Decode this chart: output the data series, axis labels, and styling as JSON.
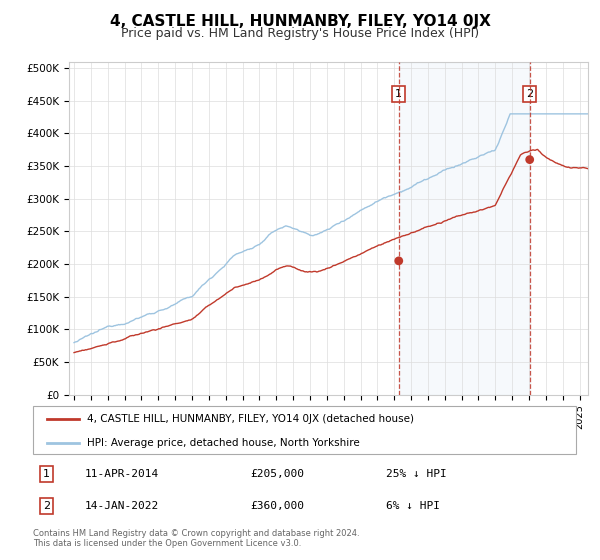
{
  "title": "4, CASTLE HILL, HUNMANBY, FILEY, YO14 0JX",
  "subtitle": "Price paid vs. HM Land Registry's House Price Index (HPI)",
  "title_fontsize": 11,
  "subtitle_fontsize": 9,
  "ylabel_ticks": [
    "£0",
    "£50K",
    "£100K",
    "£150K",
    "£200K",
    "£250K",
    "£300K",
    "£350K",
    "£400K",
    "£450K",
    "£500K"
  ],
  "ytick_values": [
    0,
    50000,
    100000,
    150000,
    200000,
    250000,
    300000,
    350000,
    400000,
    450000,
    500000
  ],
  "ylim": [
    0,
    510000
  ],
  "xlim_start": 1994.7,
  "xlim_end": 2025.5,
  "hpi_color": "#9ec4e0",
  "hpi_fill_color": "#ddeeff",
  "price_color": "#c0392b",
  "background_color": "#ffffff",
  "plot_bg_color": "#ffffff",
  "grid_color": "#dddddd",
  "sale1_x": 2014.27,
  "sale1_y": 205000,
  "sale1_label": "1",
  "sale1_date": "11-APR-2014",
  "sale1_price": "£205,000",
  "sale1_pct": "25% ↓ HPI",
  "sale2_x": 2022.04,
  "sale2_y": 360000,
  "sale2_label": "2",
  "sale2_date": "14-JAN-2022",
  "sale2_price": "£360,000",
  "sale2_pct": "6% ↓ HPI",
  "legend_label1": "4, CASTLE HILL, HUNMANBY, FILEY, YO14 0JX (detached house)",
  "legend_label2": "HPI: Average price, detached house, North Yorkshire",
  "footer1": "Contains HM Land Registry data © Crown copyright and database right 2024.",
  "footer2": "This data is licensed under the Open Government Licence v3.0."
}
